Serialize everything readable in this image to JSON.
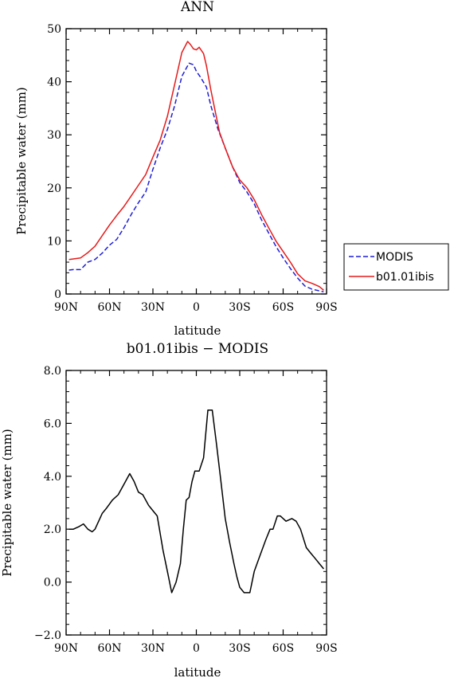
{
  "chart_data": [
    {
      "type": "line",
      "title": "ANN",
      "xlabel": "latitude",
      "ylabel": "Precipitable water (mm)",
      "xlim": [
        90,
        -90
      ],
      "ylim": [
        0,
        50
      ],
      "x_ticks": [
        {
          "value": 90,
          "label": "90N"
        },
        {
          "value": 60,
          "label": "60N"
        },
        {
          "value": 30,
          "label": "30N"
        },
        {
          "value": 0,
          "label": "0"
        },
        {
          "value": -30,
          "label": "30S"
        },
        {
          "value": -60,
          "label": "60S"
        },
        {
          "value": -90,
          "label": "90S"
        }
      ],
      "y_ticks": [
        {
          "value": 0,
          "label": "0"
        },
        {
          "value": 10,
          "label": "10"
        },
        {
          "value": 20,
          "label": "20"
        },
        {
          "value": 30,
          "label": "30"
        },
        {
          "value": 40,
          "label": "40"
        },
        {
          "value": 50,
          "label": "50"
        }
      ],
      "legend_position": "right",
      "series": [
        {
          "name": "MODIS",
          "color": "#1f1fd6",
          "style": "dashed",
          "x": [
            88,
            85,
            80,
            75,
            70,
            65,
            60,
            55,
            50,
            45,
            40,
            35,
            30,
            25,
            20,
            15,
            10,
            5,
            2,
            0,
            -3,
            -7,
            -10,
            -15,
            -20,
            -25,
            -30,
            -35,
            -40,
            -45,
            -50,
            -55,
            -60,
            -65,
            -70,
            -75,
            -80,
            -85,
            -88
          ],
          "y": [
            4.5,
            4.6,
            4.6,
            6.0,
            6.5,
            7.7,
            9.2,
            10.3,
            12.5,
            15.0,
            17.2,
            19.2,
            23.5,
            27.5,
            31.0,
            35.5,
            41.0,
            43.5,
            43.2,
            42.0,
            40.8,
            39.0,
            35.5,
            31.0,
            27.5,
            24.0,
            21.0,
            19.2,
            17.0,
            14.0,
            11.5,
            9.0,
            6.8,
            4.8,
            3.0,
            1.5,
            0.9,
            0.6,
            0.4
          ]
        },
        {
          "name": "b01.01ibis",
          "color": "#e61a1a",
          "style": "solid",
          "x": [
            88,
            85,
            80,
            75,
            70,
            65,
            60,
            55,
            50,
            45,
            40,
            35,
            30,
            25,
            20,
            15,
            10,
            6,
            4,
            2,
            0,
            -2,
            -5,
            -7,
            -10,
            -13,
            -16,
            -20,
            -25,
            -30,
            -35,
            -40,
            -45,
            -50,
            -55,
            -60,
            -65,
            -70,
            -75,
            -80,
            -85,
            -88
          ],
          "y": [
            6.5,
            6.6,
            6.8,
            7.8,
            9.0,
            11.0,
            13.0,
            14.8,
            16.5,
            18.5,
            20.5,
            22.5,
            25.8,
            29.0,
            33.5,
            39.5,
            45.5,
            47.6,
            47.0,
            46.2,
            46.0,
            46.5,
            45.3,
            43.0,
            38.5,
            34.5,
            30.5,
            27.5,
            24.0,
            21.5,
            20.0,
            17.8,
            15.0,
            12.5,
            10.0,
            8.0,
            6.0,
            3.8,
            2.5,
            2.0,
            1.4,
            0.7
          ]
        }
      ]
    },
    {
      "type": "line",
      "title": "b01.01ibis − MODIS",
      "xlabel": "latitude",
      "ylabel": "Precipitable water (mm)",
      "xlim": [
        90,
        -90
      ],
      "ylim": [
        -2.0,
        8.0
      ],
      "x_ticks": [
        {
          "value": 90,
          "label": "90N"
        },
        {
          "value": 60,
          "label": "60N"
        },
        {
          "value": 30,
          "label": "30N"
        },
        {
          "value": 0,
          "label": "0"
        },
        {
          "value": -30,
          "label": "30S"
        },
        {
          "value": -60,
          "label": "60S"
        },
        {
          "value": -90,
          "label": "90S"
        }
      ],
      "y_ticks": [
        {
          "value": -2.0,
          "label": "−2.0"
        },
        {
          "value": 0.0,
          "label": "0.0"
        },
        {
          "value": 2.0,
          "label": "2.0"
        },
        {
          "value": 4.0,
          "label": "4.0"
        },
        {
          "value": 6.0,
          "label": "6.0"
        },
        {
          "value": 8.0,
          "label": "8.0"
        }
      ],
      "series": [
        {
          "color": "#000000",
          "style": "solid",
          "x": [
            88,
            85,
            81,
            78,
            75,
            72,
            70,
            65,
            62,
            58,
            54,
            50,
            46,
            43,
            40,
            37,
            33,
            30,
            27,
            23,
            20,
            17,
            14,
            11,
            9,
            7,
            5,
            3,
            1,
            -2,
            -5,
            -8,
            -11,
            -14,
            -17,
            -20,
            -23,
            -26,
            -28,
            -30,
            -33,
            -37,
            -40,
            -44,
            -48,
            -51,
            -53,
            -56,
            -58,
            -62,
            -66,
            -69,
            -72,
            -76,
            -79,
            -82,
            -85,
            -88
          ],
          "y": [
            2.0,
            2.0,
            2.1,
            2.2,
            2.0,
            1.9,
            2.0,
            2.6,
            2.8,
            3.1,
            3.3,
            3.7,
            4.1,
            3.8,
            3.4,
            3.3,
            2.9,
            2.7,
            2.5,
            1.2,
            0.4,
            -0.4,
            0.0,
            0.7,
            2.0,
            3.1,
            3.2,
            3.8,
            4.2,
            4.2,
            4.7,
            6.5,
            6.5,
            5.2,
            3.8,
            2.4,
            1.5,
            0.7,
            0.2,
            -0.2,
            -0.4,
            -0.4,
            0.4,
            1.0,
            1.6,
            2.0,
            2.0,
            2.5,
            2.5,
            2.3,
            2.4,
            2.3,
            2.0,
            1.3,
            1.1,
            0.9,
            0.7,
            0.5
          ]
        }
      ]
    }
  ]
}
